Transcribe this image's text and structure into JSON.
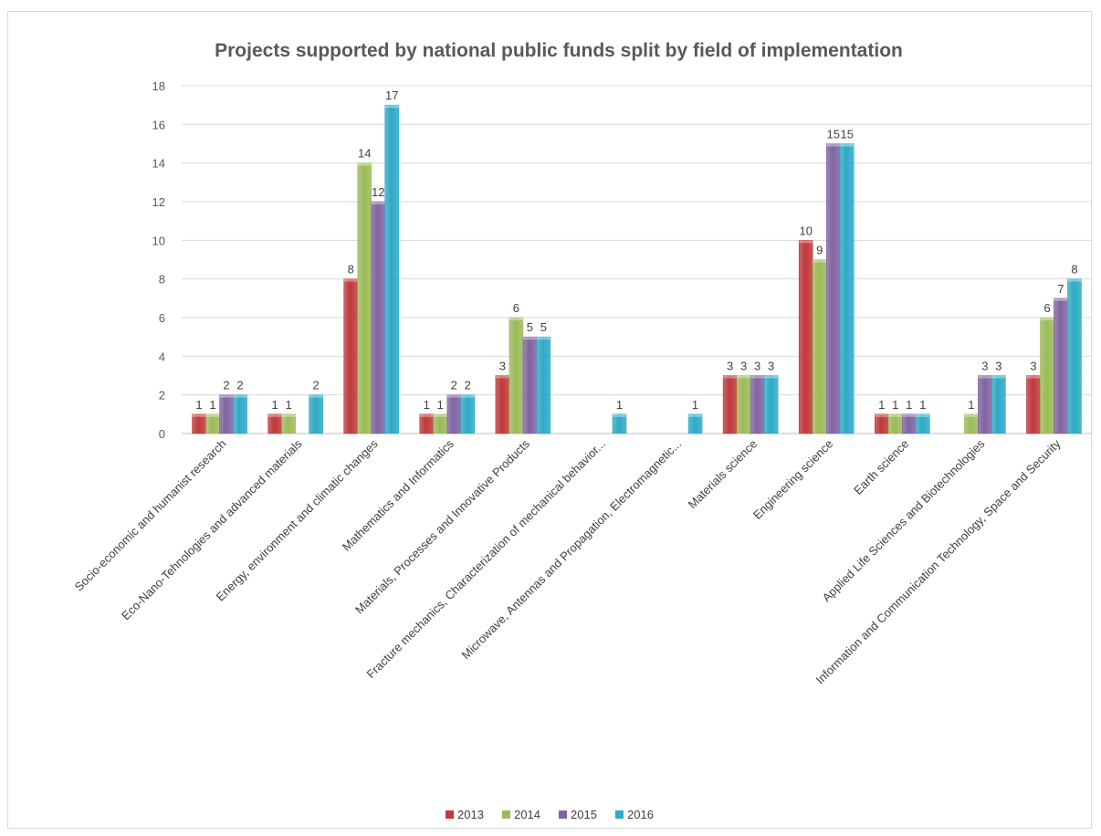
{
  "chart_data": {
    "type": "bar",
    "title": "Projects supported by national public funds split by field of implementation",
    "xlabel": "",
    "ylabel": "",
    "ylim": [
      0,
      18
    ],
    "yticks": [
      "0",
      "2",
      "4",
      "6",
      "8",
      "10",
      "12",
      "14",
      "16",
      "18"
    ],
    "grid": true,
    "legend": "bottom",
    "categories": [
      "Socio-economic and humanist research",
      "Eco-Nano-Tehnologies and advanced materials",
      "Energy, environment and climatic changes",
      "Mathematics and Informatics",
      "Materials, Processes and Innovative Products",
      "Fracture mechanics, Characterization of mechanical behavior...",
      "Microwave, Antennas and Propagation, Electromagnetic...",
      "Materials science",
      "Engineering science",
      "Earth science",
      "Applied Life Sciences and Biotechnologies",
      "Information and Communication Technology, Space and Security"
    ],
    "series": [
      {
        "name": "2013",
        "color": "#c0393b",
        "values": [
          1,
          1,
          8,
          1,
          3,
          null,
          null,
          3,
          10,
          1,
          null,
          3
        ]
      },
      {
        "name": "2014",
        "color": "#9bbb59",
        "values": [
          1,
          1,
          14,
          1,
          6,
          null,
          null,
          3,
          9,
          1,
          1,
          6
        ]
      },
      {
        "name": "2015",
        "color": "#8064a2",
        "values": [
          2,
          null,
          12,
          2,
          5,
          null,
          null,
          3,
          15,
          1,
          3,
          7
        ]
      },
      {
        "name": "2016",
        "color": "#2eaac6",
        "values": [
          2,
          2,
          17,
          2,
          5,
          1,
          1,
          3,
          15,
          1,
          3,
          8
        ]
      }
    ]
  }
}
